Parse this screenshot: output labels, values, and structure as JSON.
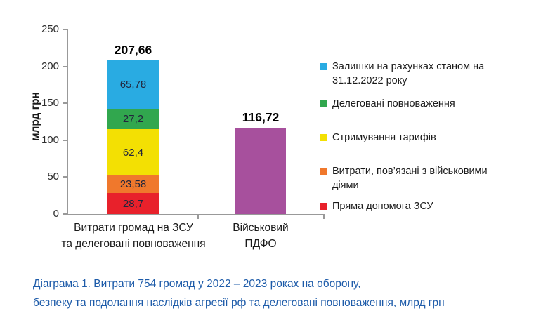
{
  "chart_data": {
    "type": "bar",
    "stacked": true,
    "title": "",
    "xlabel": "",
    "ylabel": "млрд грн",
    "ylim": [
      0,
      250
    ],
    "yticks": [
      0,
      50,
      100,
      150,
      200,
      250
    ],
    "grid": false,
    "legend_position": "right",
    "categories": [
      "Витрати громад на ЗСУ та делеговані повноваження",
      "Військовий ПДФО"
    ],
    "totals": [
      207.66,
      116.72
    ],
    "bars": [
      {
        "category": "Витрати громад на ЗСУ\nта делеговані повноваження",
        "total": 207.66,
        "total_label": "207,66",
        "segments": [
          {
            "name": "Пряма допомога ЗСУ",
            "value": 28.7,
            "label": "28,7",
            "color": "#e8212b"
          },
          {
            "name": "Витрати, пов’язані з військовими діями",
            "value": 23.58,
            "label": "23,58",
            "color": "#f0782c"
          },
          {
            "name": "Стримування тарифів",
            "value": 62.4,
            "label": "62,4",
            "color": "#f3e003"
          },
          {
            "name": "Делеговані повноваження",
            "value": 27.2,
            "label": "27,2",
            "color": "#31a74e"
          },
          {
            "name": "Залишки на рахунках станом на 31.12.2022 року",
            "value": 65.78,
            "label": "65,78",
            "color": "#29abe2"
          }
        ]
      },
      {
        "category": "Військовий\nПДФО",
        "total": 116.72,
        "total_label": "116,72",
        "segments": [
          {
            "name": "Військовий ПДФО",
            "value": 116.72,
            "label": "",
            "color": "#a7509d"
          }
        ]
      }
    ]
  },
  "legend": {
    "items": [
      {
        "label": "Залишки на рахунках станом на\n31.12.2022 року",
        "color": "#29abe2"
      },
      {
        "label": "Делеговані повноваження",
        "color": "#31a74e"
      },
      {
        "label": "Стримування тарифів",
        "color": "#f3e003"
      },
      {
        "label": "Витрати, пов’язані з військовими\nдіями",
        "color": "#f0782c"
      },
      {
        "label": "Пряма допомога ЗСУ",
        "color": "#e8212b"
      }
    ]
  },
  "caption": {
    "text": "Діаграма 1.  Витрати 754 громад у 2022 – 2023 роках на оборону,\nбезпеку та подолання наслідків агресії рф та делеговані повноваження, млрд грн",
    "color": "#1d5ba9"
  }
}
